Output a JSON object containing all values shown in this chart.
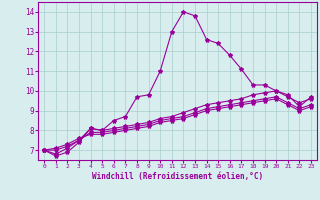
{
  "x": [
    0,
    1,
    2,
    3,
    4,
    5,
    6,
    7,
    8,
    9,
    10,
    11,
    12,
    13,
    14,
    15,
    16,
    17,
    18,
    19,
    20,
    21,
    22,
    23
  ],
  "line1": [
    7.0,
    6.7,
    6.9,
    7.4,
    8.1,
    8.0,
    8.5,
    8.7,
    9.7,
    9.8,
    11.0,
    13.0,
    14.0,
    13.8,
    12.6,
    12.4,
    11.8,
    11.1,
    10.3,
    10.3,
    10.0,
    9.8,
    9.2,
    9.7
  ],
  "line2": [
    7.0,
    6.8,
    7.1,
    7.5,
    8.1,
    8.0,
    8.1,
    8.2,
    8.3,
    8.4,
    8.6,
    8.7,
    8.9,
    9.1,
    9.3,
    9.4,
    9.5,
    9.6,
    9.8,
    9.9,
    10.0,
    9.7,
    9.4,
    9.6
  ],
  "line3": [
    7.0,
    7.0,
    7.2,
    7.5,
    7.9,
    7.9,
    8.0,
    8.1,
    8.2,
    8.3,
    8.5,
    8.6,
    8.7,
    8.9,
    9.1,
    9.2,
    9.3,
    9.4,
    9.5,
    9.6,
    9.7,
    9.4,
    9.1,
    9.3
  ],
  "line4": [
    7.0,
    7.1,
    7.3,
    7.6,
    7.8,
    7.8,
    7.9,
    8.0,
    8.1,
    8.2,
    8.4,
    8.5,
    8.6,
    8.8,
    9.0,
    9.1,
    9.2,
    9.3,
    9.4,
    9.5,
    9.6,
    9.3,
    9.0,
    9.2
  ],
  "color": "#990099",
  "bg_color": "#d8eeee",
  "grid_color": "#aacccc",
  "xlabel": "Windchill (Refroidissement éolien,°C)",
  "xlim": [
    -0.5,
    23.5
  ],
  "ylim": [
    6.5,
    14.5
  ],
  "yticks": [
    7,
    8,
    9,
    10,
    11,
    12,
    13,
    14
  ],
  "xticks": [
    0,
    1,
    2,
    3,
    4,
    5,
    6,
    7,
    8,
    9,
    10,
    11,
    12,
    13,
    14,
    15,
    16,
    17,
    18,
    19,
    20,
    21,
    22,
    23
  ],
  "marker": "*",
  "markersize": 3
}
